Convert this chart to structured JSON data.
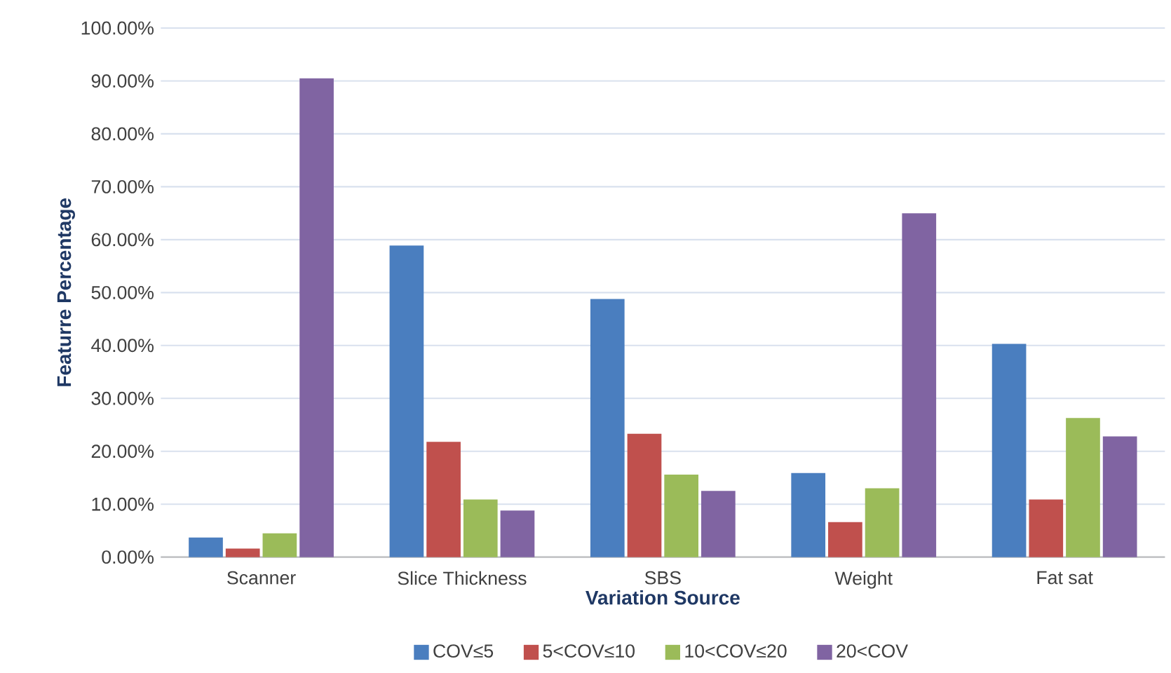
{
  "chart_data": {
    "type": "bar",
    "xlabel": "Variation Source",
    "ylabel": "Featurre Percentage",
    "categories": [
      "Scanner",
      "Slice Thickness",
      "SBS",
      "Weight",
      "Fat sat"
    ],
    "series": [
      {
        "name": "COV≤5",
        "color": "#4a7ebf",
        "values": [
          3.7,
          58.9,
          48.8,
          15.9,
          40.3
        ]
      },
      {
        "name": "5<COV≤10",
        "color": "#c0504d",
        "values": [
          1.6,
          21.8,
          23.3,
          6.6,
          10.9
        ]
      },
      {
        "name": "10<COV≤20",
        "color": "#9bbb59",
        "values": [
          4.5,
          10.9,
          15.6,
          13.0,
          26.3
        ]
      },
      {
        "name": "20<COV",
        "color": "#8064a2",
        "values": [
          90.5,
          8.8,
          12.5,
          65.0,
          22.8
        ]
      }
    ],
    "ylim": [
      0,
      100
    ],
    "yticks": [
      {
        "value": 0,
        "label": "0.00%"
      },
      {
        "value": 10,
        "label": "10.00%"
      },
      {
        "value": 20,
        "label": "20.00%"
      },
      {
        "value": 30,
        "label": "30.00%"
      },
      {
        "value": 40,
        "label": "40.00%"
      },
      {
        "value": 50,
        "label": "50.00%"
      },
      {
        "value": 60,
        "label": "60.00%"
      },
      {
        "value": 70,
        "label": "70.00%"
      },
      {
        "value": 80,
        "label": "80.00%"
      },
      {
        "value": 90,
        "label": "90.00%"
      },
      {
        "value": 100,
        "label": "100.00%"
      }
    ],
    "grid": "y",
    "legend": "bottom"
  }
}
